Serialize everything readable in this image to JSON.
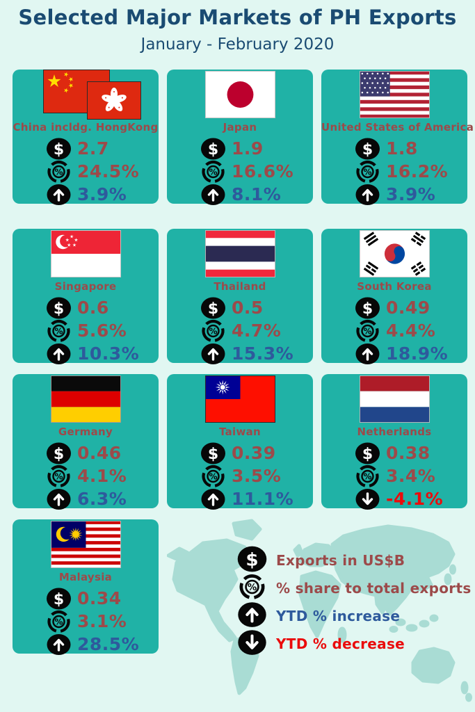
{
  "page": {
    "title": "Selected Major Markets of PH Exports",
    "subtitle": "January - February 2020"
  },
  "colors": {
    "background": "#e1f7f2",
    "card_teal": "#20b2a6",
    "title_navy": "#1a4b72",
    "value_maroon": "#9c4a4a",
    "increase_blue": "#2e5a9c",
    "decrease_red": "#ea0c0c",
    "map_land": "#a9dcd4",
    "icon_black": "#070707"
  },
  "cards": [
    {
      "country": "China incldg. HongKong",
      "flag": "china-hongkong",
      "exports_usd_b": "2.7",
      "share_pct": "24.5%",
      "ytd_pct": "3.9%",
      "ytd_direction": "increase"
    },
    {
      "country": "Japan",
      "flag": "japan",
      "exports_usd_b": "1.9",
      "share_pct": "16.6%",
      "ytd_pct": "8.1%",
      "ytd_direction": "increase"
    },
    {
      "country": "United States of America",
      "flag": "usa",
      "exports_usd_b": "1.8",
      "share_pct": "16.2%",
      "ytd_pct": "3.9%",
      "ytd_direction": "increase"
    },
    {
      "country": "Singapore",
      "flag": "singapore",
      "exports_usd_b": "0.6",
      "share_pct": "5.6%",
      "ytd_pct": "10.3%",
      "ytd_direction": "increase"
    },
    {
      "country": "Thailand",
      "flag": "thailand",
      "exports_usd_b": "0.5",
      "share_pct": "4.7%",
      "ytd_pct": "15.3%",
      "ytd_direction": "increase"
    },
    {
      "country": "South Korea",
      "flag": "south-korea",
      "exports_usd_b": "0.49",
      "share_pct": "4.4%",
      "ytd_pct": "18.9%",
      "ytd_direction": "increase"
    },
    {
      "country": "Germany",
      "flag": "germany",
      "exports_usd_b": "0.46",
      "share_pct": "4.1%",
      "ytd_pct": "6.3%",
      "ytd_direction": "increase"
    },
    {
      "country": "Taiwan",
      "flag": "taiwan",
      "exports_usd_b": "0.39",
      "share_pct": "3.5%",
      "ytd_pct": "11.1%",
      "ytd_direction": "increase"
    },
    {
      "country": "Netherlands",
      "flag": "netherlands",
      "exports_usd_b": "0.38",
      "share_pct": "3.4%",
      "ytd_pct": "-4.1%",
      "ytd_direction": "decrease"
    },
    {
      "country": "Malaysia",
      "flag": "malaysia",
      "exports_usd_b": "0.34",
      "share_pct": "3.1%",
      "ytd_pct": "28.5%",
      "ytd_direction": "increase"
    }
  ],
  "legend": {
    "items": [
      {
        "icon": "dollar-icon",
        "label": "Exports in US$B",
        "color_key": "value_maroon"
      },
      {
        "icon": "percent-icon",
        "label": "% share to total exports",
        "color_key": "value_maroon"
      },
      {
        "icon": "arrow-up-icon",
        "label": "YTD % increase",
        "color_key": "increase_blue"
      },
      {
        "icon": "arrow-down-icon",
        "label": "YTD % decrease",
        "color_key": "decrease_red"
      }
    ]
  },
  "chart_data": {
    "type": "table",
    "title": "Selected Major Markets of PH Exports",
    "subtitle": "January - February 2020",
    "columns": [
      "country",
      "exports_usd_b",
      "share_pct_of_total_exports",
      "ytd_pct_change"
    ],
    "rows": [
      [
        "China incldg. HongKong",
        2.7,
        24.5,
        3.9
      ],
      [
        "Japan",
        1.9,
        16.6,
        8.1
      ],
      [
        "United States of America",
        1.8,
        16.2,
        3.9
      ],
      [
        "Singapore",
        0.6,
        5.6,
        10.3
      ],
      [
        "Thailand",
        0.5,
        4.7,
        15.3
      ],
      [
        "South Korea",
        0.49,
        4.4,
        18.9
      ],
      [
        "Germany",
        0.46,
        4.1,
        6.3
      ],
      [
        "Taiwan",
        0.39,
        3.5,
        11.1
      ],
      [
        "Netherlands",
        0.38,
        3.4,
        -4.1
      ],
      [
        "Malaysia",
        0.34,
        3.1,
        28.5
      ]
    ]
  }
}
